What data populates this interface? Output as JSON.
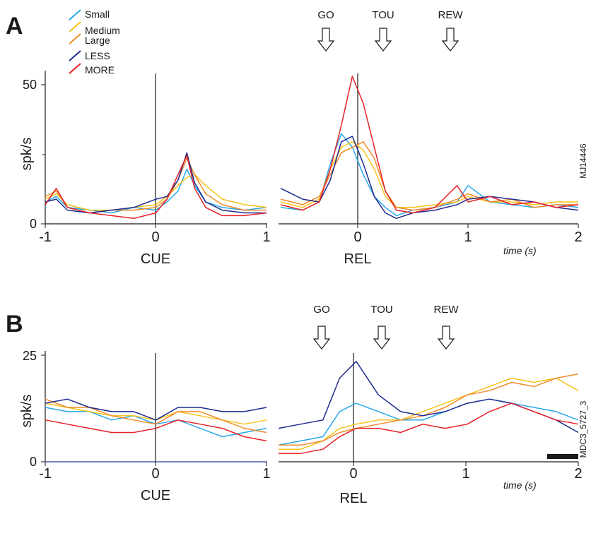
{
  "legend": [
    {
      "label": "Small",
      "color": "#29a7e8"
    },
    {
      "label": "Medium",
      "color": "#f6c21a"
    },
    {
      "label": "Large",
      "color": "#f08a2a"
    },
    {
      "label": "LESS",
      "color": "#1f2b8f"
    },
    {
      "label": "MORE",
      "color": "#e8202a"
    }
  ],
  "chart_data": [
    {
      "type": "line",
      "panel": "A",
      "id": "MJ14446",
      "ylabel": "spk/s",
      "time_label": "time (s)",
      "left": {
        "align_label": "CUE",
        "xlim": [
          -1,
          1
        ],
        "xticks": [
          "-1",
          "0",
          "1"
        ],
        "ylim": [
          0,
          55
        ],
        "yticks": [
          {
            "value": 0,
            "label": "0"
          },
          {
            "value": 50,
            "label": "50"
          }
        ],
        "series": [
          {
            "name": "Small",
            "x": [
              -1,
              -0.9,
              -0.8,
              -0.6,
              -0.4,
              -0.2,
              0,
              0.1,
              0.2,
              0.28,
              0.35,
              0.45,
              0.6,
              0.8,
              1
            ],
            "y": [
              8,
              10,
              6,
              5,
              4,
              6,
              5,
              8,
              12,
              20,
              14,
              8,
              6,
              5,
              6
            ]
          },
          {
            "name": "Medium",
            "x": [
              -1,
              -0.9,
              -0.8,
              -0.6,
              -0.4,
              -0.2,
              0,
              0.1,
              0.2,
              0.28,
              0.35,
              0.45,
              0.6,
              0.8,
              1
            ],
            "y": [
              9,
              11,
              7,
              5,
              5,
              6,
              7,
              10,
              14,
              17,
              18,
              14,
              9,
              7,
              6
            ]
          },
          {
            "name": "Large",
            "x": [
              -1,
              -0.9,
              -0.8,
              -0.6,
              -0.4,
              -0.2,
              0,
              0.1,
              0.2,
              0.28,
              0.35,
              0.45,
              0.6,
              0.8,
              1
            ],
            "y": [
              10,
              12,
              6,
              4,
              5,
              5,
              6,
              9,
              16,
              24,
              18,
              11,
              7,
              5,
              5
            ]
          },
          {
            "name": "LESS",
            "x": [
              -1,
              -0.9,
              -0.8,
              -0.6,
              -0.4,
              -0.2,
              0,
              0.1,
              0.2,
              0.28,
              0.35,
              0.45,
              0.6,
              0.8,
              1
            ],
            "y": [
              8,
              9,
              5,
              4,
              5,
              6,
              9,
              10,
              16,
              26,
              15,
              8,
              5,
              4,
              4
            ]
          },
          {
            "name": "MORE",
            "x": [
              -1,
              -0.9,
              -0.8,
              -0.6,
              -0.4,
              -0.2,
              0,
              0.1,
              0.2,
              0.28,
              0.35,
              0.45,
              0.6,
              0.8,
              1
            ],
            "y": [
              7,
              13,
              6,
              4,
              3,
              2,
              4,
              9,
              18,
              25,
              13,
              6,
              3,
              3,
              4
            ]
          }
        ]
      },
      "right": {
        "align_label": "REL",
        "xlim": [
          -0.7,
          2
        ],
        "xticks": [
          "0",
          "1",
          "2"
        ],
        "ylim": [
          0,
          55
        ],
        "events": [
          {
            "label": "GO",
            "t": -0.28
          },
          {
            "label": "TOU",
            "t": 0.24
          },
          {
            "label": "REW",
            "t": 0.84
          }
        ],
        "series": [
          {
            "name": "Small",
            "x": [
              -0.7,
              -0.5,
              -0.35,
              -0.25,
              -0.15,
              -0.05,
              0.05,
              0.15,
              0.25,
              0.35,
              0.5,
              0.7,
              0.9,
              1.0,
              1.2,
              1.4,
              1.6,
              1.8,
              2.0
            ],
            "y": [
              6,
              5,
              8,
              22,
              33,
              28,
              18,
              10,
              6,
              3,
              5,
              6,
              8,
              14,
              8,
              7,
              6,
              7,
              6
            ]
          },
          {
            "name": "Medium",
            "x": [
              -0.7,
              -0.5,
              -0.35,
              -0.25,
              -0.15,
              -0.05,
              0.05,
              0.15,
              0.25,
              0.35,
              0.5,
              0.7,
              0.9,
              1.0,
              1.2,
              1.4,
              1.6,
              1.8,
              2.0
            ],
            "y": [
              8,
              6,
              9,
              20,
              28,
              30,
              27,
              20,
              10,
              6,
              6,
              7,
              8,
              10,
              8,
              8,
              7,
              8,
              8
            ]
          },
          {
            "name": "Large",
            "x": [
              -0.7,
              -0.5,
              -0.35,
              -0.25,
              -0.15,
              -0.05,
              0.05,
              0.15,
              0.25,
              0.35,
              0.5,
              0.7,
              0.9,
              1.0,
              1.2,
              1.4,
              1.6,
              1.8,
              2.0
            ],
            "y": [
              9,
              7,
              10,
              18,
              26,
              28,
              30,
              24,
              12,
              6,
              5,
              6,
              9,
              11,
              8,
              9,
              6,
              7,
              7
            ]
          },
          {
            "name": "LESS",
            "x": [
              -0.7,
              -0.5,
              -0.35,
              -0.25,
              -0.15,
              -0.05,
              0.05,
              0.15,
              0.25,
              0.35,
              0.5,
              0.7,
              0.9,
              1.0,
              1.2,
              1.4,
              1.6,
              1.8,
              2.0
            ],
            "y": [
              13,
              9,
              8,
              16,
              30,
              32,
              22,
              10,
              4,
              2,
              4,
              5,
              7,
              9,
              10,
              9,
              8,
              6,
              5
            ]
          },
          {
            "name": "MORE",
            "x": [
              -0.7,
              -0.5,
              -0.35,
              -0.25,
              -0.15,
              -0.05,
              0.05,
              0.15,
              0.25,
              0.35,
              0.5,
              0.7,
              0.9,
              1.0,
              1.2,
              1.4,
              1.6,
              1.8,
              2.0
            ],
            "y": [
              7,
              5,
              8,
              20,
              36,
              54,
              44,
              28,
              12,
              5,
              4,
              6,
              14,
              8,
              10,
              7,
              8,
              6,
              7
            ]
          }
        ]
      }
    },
    {
      "type": "line",
      "panel": "B",
      "id": "MDC3_5727_3",
      "ylabel": "spk/s",
      "time_label": "time (s)",
      "left": {
        "align_label": "CUE",
        "xlim": [
          -1,
          1
        ],
        "xticks": [
          "-1",
          "0",
          "1"
        ],
        "ylim": [
          0,
          26
        ],
        "yticks": [
          {
            "value": 0,
            "label": "0"
          },
          {
            "value": 25,
            "label": "25"
          }
        ],
        "series": [
          {
            "name": "Small",
            "x": [
              -1,
              -0.8,
              -0.6,
              -0.4,
              -0.2,
              0,
              0.2,
              0.4,
              0.6,
              0.8,
              1
            ],
            "y": [
              13,
              12,
              12,
              10,
              11,
              9,
              10,
              8,
              6,
              7,
              8
            ]
          },
          {
            "name": "Medium",
            "x": [
              -1,
              -0.8,
              -0.6,
              -0.4,
              -0.2,
              0,
              0.2,
              0.4,
              0.6,
              0.8,
              1
            ],
            "y": [
              14,
              13,
              12,
              11,
              11,
              10,
              12,
              11,
              10,
              9,
              10
            ]
          },
          {
            "name": "Large",
            "x": [
              -1,
              -0.8,
              -0.6,
              -0.4,
              -0.2,
              0,
              0.2,
              0.4,
              0.6,
              0.8,
              1
            ],
            "y": [
              15,
              13,
              13,
              11,
              10,
              9,
              12,
              12,
              10,
              8,
              7
            ]
          },
          {
            "name": "LESS",
            "x": [
              -1,
              -0.8,
              -0.6,
              -0.4,
              -0.2,
              0,
              0.2,
              0.4,
              0.6,
              0.8,
              1
            ],
            "y": [
              14,
              15,
              13,
              12,
              12,
              10,
              13,
              13,
              12,
              12,
              13
            ]
          },
          {
            "name": "MORE",
            "x": [
              -1,
              -0.8,
              -0.6,
              -0.4,
              -0.2,
              0,
              0.2,
              0.4,
              0.6,
              0.8,
              1
            ],
            "y": [
              10,
              9,
              8,
              7,
              7,
              8,
              10,
              9,
              8,
              6,
              5
            ]
          }
        ]
      },
      "right": {
        "align_label": "REL",
        "xlim": [
          -0.7,
          2
        ],
        "xticks": [
          "0",
          "1",
          "2"
        ],
        "ylim": [
          0,
          26
        ],
        "events": [
          {
            "label": "GO",
            "t": -0.3
          },
          {
            "label": "TOU",
            "t": 0.24
          },
          {
            "label": "REW",
            "t": 0.82
          }
        ],
        "scale_bar": true,
        "series": [
          {
            "name": "Small",
            "x": [
              -0.7,
              -0.5,
              -0.3,
              -0.15,
              0,
              0.2,
              0.4,
              0.6,
              0.8,
              1.0,
              1.2,
              1.4,
              1.6,
              1.8,
              2.0
            ],
            "y": [
              4,
              5,
              6,
              12,
              14,
              12,
              10,
              10,
              12,
              14,
              15,
              14,
              13,
              12,
              10
            ]
          },
          {
            "name": "Medium",
            "x": [
              -0.7,
              -0.5,
              -0.3,
              -0.15,
              0,
              0.2,
              0.4,
              0.6,
              0.8,
              1.0,
              1.2,
              1.4,
              1.6,
              1.8,
              2.0
            ],
            "y": [
              3,
              3,
              5,
              8,
              9,
              10,
              10,
              12,
              14,
              16,
              18,
              20,
              19,
              20,
              17
            ]
          },
          {
            "name": "Large",
            "x": [
              -0.7,
              -0.5,
              -0.3,
              -0.15,
              0,
              0.2,
              0.4,
              0.6,
              0.8,
              1.0,
              1.2,
              1.4,
              1.6,
              1.8,
              2.0
            ],
            "y": [
              4,
              4,
              5,
              7,
              8,
              9,
              10,
              11,
              13,
              16,
              17,
              19,
              18,
              20,
              21
            ]
          },
          {
            "name": "LESS",
            "x": [
              -0.7,
              -0.5,
              -0.3,
              -0.15,
              0,
              0.2,
              0.4,
              0.6,
              0.8,
              1.0,
              1.2,
              1.4,
              1.6,
              1.8,
              2.0
            ],
            "y": [
              8,
              9,
              10,
              20,
              24,
              16,
              12,
              11,
              12,
              14,
              15,
              14,
              12,
              10,
              7
            ]
          },
          {
            "name": "MORE",
            "x": [
              -0.7,
              -0.5,
              -0.3,
              -0.15,
              0,
              0.2,
              0.4,
              0.6,
              0.8,
              1.0,
              1.2,
              1.4,
              1.6,
              1.8,
              2.0
            ],
            "y": [
              2,
              2,
              3,
              6,
              8,
              8,
              7,
              9,
              8,
              9,
              12,
              14,
              12,
              10,
              9
            ]
          }
        ]
      }
    }
  ]
}
